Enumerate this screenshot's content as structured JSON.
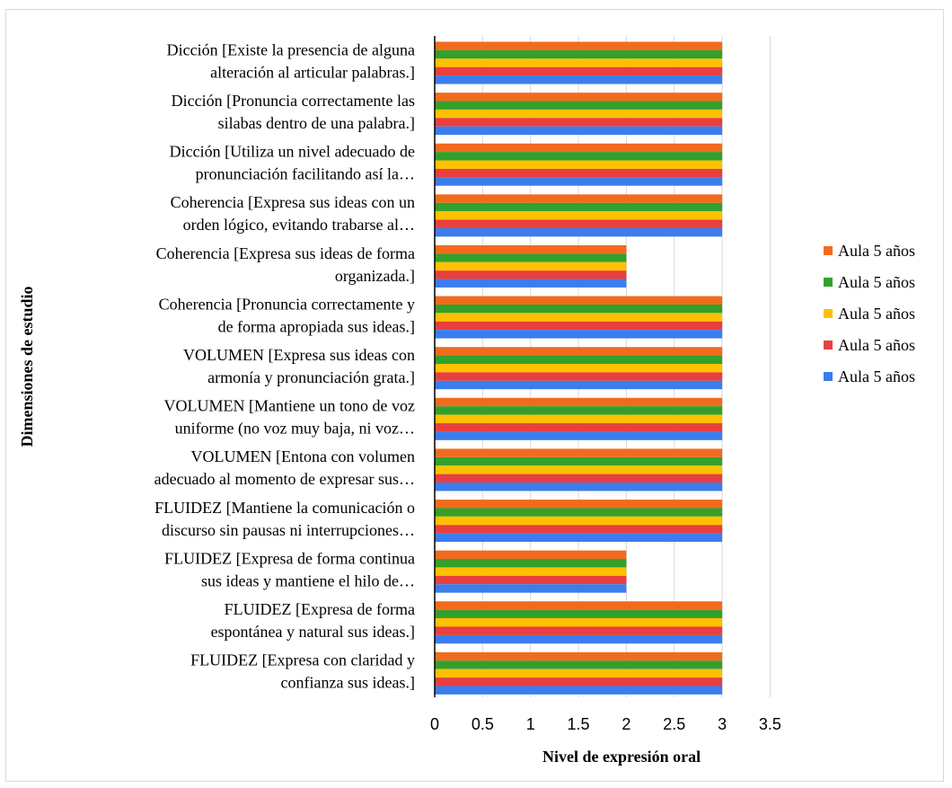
{
  "chart_data": {
    "type": "bar",
    "orientation": "horizontal",
    "xlabel": "Nivel de expresión oral",
    "ylabel": "Dimensiones de estudio",
    "xlim": [
      0,
      3.5
    ],
    "xticks": [
      "0",
      "0.5",
      "1",
      "1.5",
      "2",
      "2.5",
      "3",
      "3.5"
    ],
    "grid": "vertical",
    "legend_position": "right",
    "categories": [
      [
        "Dicción [Existe la presencia de alguna",
        "alteración al articular palabras.]"
      ],
      [
        "Dicción [Pronuncia correctamente las",
        "silabas dentro de una palabra.]"
      ],
      [
        "Dicción [Utiliza un nivel adecuado de",
        "pronunciación facilitando así la…"
      ],
      [
        "Coherencia [Expresa sus ideas con un",
        "orden lógico, evitando trabarse al…"
      ],
      [
        "Coherencia [Expresa sus ideas de forma",
        "organizada.]"
      ],
      [
        "Coherencia [Pronuncia correctamente y",
        "de forma apropiada sus ideas.]"
      ],
      [
        "VOLUMEN [Expresa sus ideas con",
        "armonía y pronunciación grata.]"
      ],
      [
        "VOLUMEN [Mantiene un tono de voz",
        "uniforme (no voz muy baja, ni voz…"
      ],
      [
        "VOLUMEN [Entona con volumen",
        "adecuado al momento de expresar sus…"
      ],
      [
        "FLUIDEZ [Mantiene la comunicación o",
        "discurso sin pausas ni interrupciones…"
      ],
      [
        "FLUIDEZ [Expresa de forma continua",
        "sus ideas y mantiene el hilo de…"
      ],
      [
        "FLUIDEZ [Expresa de forma",
        "espontánea y natural sus ideas.]"
      ],
      [
        "FLUIDEZ [Expresa con claridad y",
        "confianza sus ideas.]"
      ]
    ],
    "series": [
      {
        "name": "Aula 5 años",
        "color": "#f26b1d",
        "values": [
          3,
          3,
          3,
          3,
          2,
          3,
          3,
          3,
          3,
          3,
          2,
          3,
          3
        ]
      },
      {
        "name": "Aula 5 años",
        "color": "#33a02c",
        "values": [
          3,
          3,
          3,
          3,
          2,
          3,
          3,
          3,
          3,
          3,
          2,
          3,
          3
        ]
      },
      {
        "name": "Aula 5 años",
        "color": "#ffc000",
        "values": [
          3,
          3,
          3,
          3,
          2,
          3,
          3,
          3,
          3,
          3,
          2,
          3,
          3
        ]
      },
      {
        "name": "Aula 5 años",
        "color": "#e83f3f",
        "values": [
          3,
          3,
          3,
          3,
          2,
          3,
          3,
          3,
          3,
          3,
          2,
          3,
          3
        ]
      },
      {
        "name": "Aula 5 años",
        "color": "#3b7ded",
        "values": [
          3,
          3,
          3,
          3,
          2,
          3,
          3,
          3,
          3,
          3,
          2,
          3,
          3
        ]
      }
    ]
  }
}
